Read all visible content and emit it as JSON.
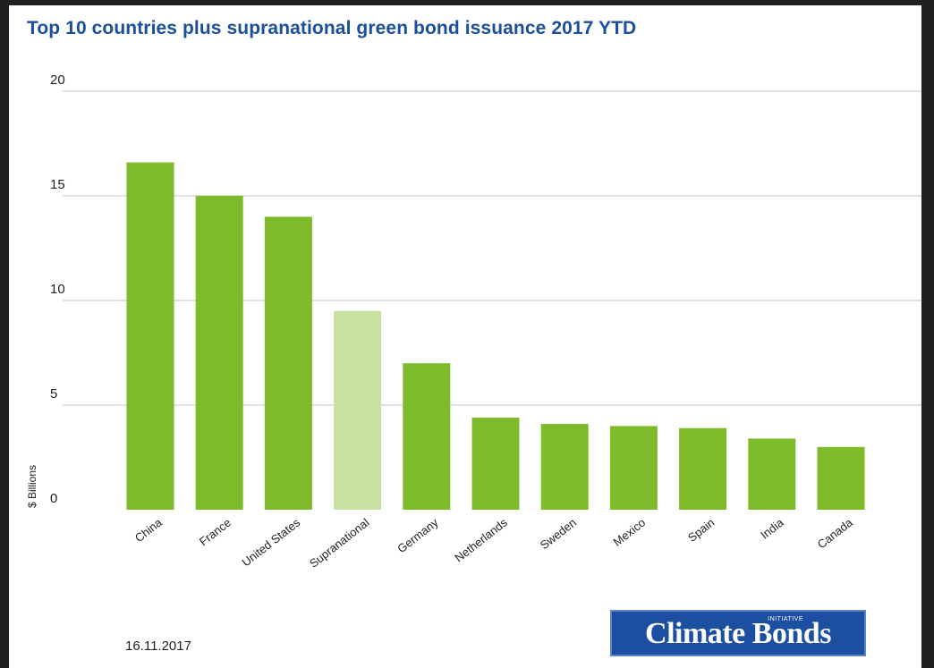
{
  "chart_data": {
    "type": "bar",
    "title": "Top 10 countries plus supranational green bond issuance 2017 YTD",
    "ylabel": "$ Billions",
    "xlabel": "",
    "ylim": [
      0,
      20
    ],
    "yticks": [
      0,
      5,
      10,
      15,
      20
    ],
    "grid": true,
    "categories": [
      "China",
      "France",
      "United States",
      "Supranational",
      "Germany",
      "Netherlands",
      "Sweden",
      "Mexico",
      "Spain",
      "India",
      "Canada"
    ],
    "values": [
      16.6,
      15.0,
      14.0,
      9.5,
      7.0,
      4.4,
      4.1,
      4.0,
      3.9,
      3.4,
      3.0
    ],
    "colors": [
      "#7dbb2a",
      "#7dbb2a",
      "#7dbb2a",
      "#c8e0a0",
      "#7dbb2a",
      "#7dbb2a",
      "#7dbb2a",
      "#7dbb2a",
      "#7dbb2a",
      "#7dbb2a",
      "#7dbb2a"
    ]
  },
  "footer": {
    "date": "16.11.2017",
    "logo_text": "Climate Bonds",
    "logo_sub": "INITIATIVE"
  },
  "colors": {
    "title": "#1b4f9c",
    "bar": "#7dbb2a",
    "bar_highlight": "#c8e0a0",
    "grid": "#cfcfcf",
    "logo_bg": "#1c4fa0"
  }
}
